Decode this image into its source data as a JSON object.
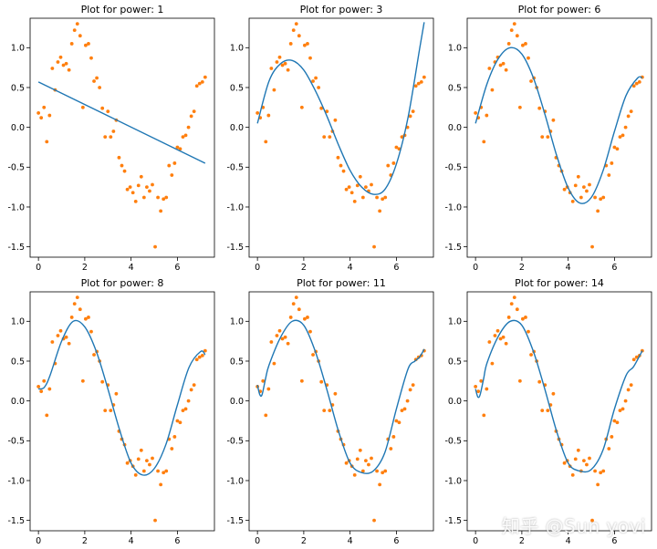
{
  "chart_data": {
    "type": "scatter",
    "layout": "2x3 grid of subplots",
    "xlim": [
      -0.36,
      7.6
    ],
    "ylim": [
      -1.63,
      1.37
    ],
    "xticks": [
      0,
      2,
      4,
      6
    ],
    "yticks": [
      -1.5,
      -1.0,
      -0.5,
      0.0,
      0.5,
      1.0
    ],
    "ytick_labels": [
      "-1.5",
      "-1.0",
      "-0.5",
      "0.0",
      "0.5",
      "1.0"
    ],
    "xtick_labels": [
      "0",
      "2",
      "4",
      "6"
    ],
    "points": {
      "x": [
        0.0,
        0.12,
        0.24,
        0.36,
        0.48,
        0.6,
        0.72,
        0.84,
        0.96,
        1.08,
        1.2,
        1.32,
        1.44,
        1.56,
        1.68,
        1.8,
        1.92,
        2.04,
        2.16,
        2.28,
        2.4,
        2.52,
        2.64,
        2.76,
        2.88,
        3.0,
        3.12,
        3.24,
        3.36,
        3.48,
        3.6,
        3.72,
        3.84,
        3.96,
        4.08,
        4.2,
        4.32,
        4.44,
        4.56,
        4.68,
        4.8,
        4.92,
        5.04,
        5.16,
        5.28,
        5.4,
        5.52,
        5.64,
        5.76,
        5.88,
        6.0,
        6.12,
        6.24,
        6.36,
        6.48,
        6.6,
        6.72,
        6.84,
        6.96,
        7.08,
        7.2
      ],
      "y": [
        0.18,
        0.12,
        0.25,
        -0.18,
        0.15,
        0.74,
        0.47,
        0.82,
        0.88,
        0.78,
        0.8,
        0.72,
        1.05,
        1.22,
        1.3,
        1.15,
        0.25,
        1.03,
        1.05,
        0.87,
        0.58,
        0.62,
        0.5,
        0.24,
        -0.12,
        0.2,
        -0.12,
        -0.05,
        0.09,
        -0.38,
        -0.48,
        -0.55,
        -0.78,
        -0.75,
        -0.82,
        -0.93,
        -0.73,
        -0.62,
        -0.88,
        -0.75,
        -0.8,
        -0.72,
        -1.5,
        -0.88,
        -1.05,
        -0.9,
        -0.88,
        -0.48,
        -0.6,
        -0.45,
        -0.25,
        -0.27,
        -0.12,
        -0.1,
        0.0,
        0.14,
        0.2,
        0.52,
        0.55,
        0.57,
        0.63
      ]
    },
    "panels": [
      {
        "title": "Plot for power: 1",
        "power": 1,
        "fit_x": [
          0.0,
          7.2
        ],
        "fit_y": [
          0.57,
          -0.45
        ]
      },
      {
        "title": "Plot for power: 3",
        "power": 3,
        "fit_x": [
          0.0,
          0.5,
          1.0,
          1.5,
          2.0,
          2.5,
          3.0,
          3.5,
          4.0,
          4.5,
          5.0,
          5.5,
          6.0,
          6.5,
          7.0,
          7.2
        ],
        "fit_y": [
          0.05,
          0.58,
          0.8,
          0.84,
          0.72,
          0.46,
          0.14,
          -0.22,
          -0.54,
          -0.75,
          -0.84,
          -0.78,
          -0.46,
          0.12,
          0.98,
          1.32
        ]
      },
      {
        "title": "Plot for power: 6",
        "power": 6,
        "fit_x": [
          0.0,
          0.5,
          1.0,
          1.5,
          2.0,
          2.5,
          3.0,
          3.5,
          4.0,
          4.5,
          5.0,
          5.5,
          6.0,
          6.5,
          7.0,
          7.2
        ],
        "fit_y": [
          0.05,
          0.55,
          0.87,
          1.0,
          0.92,
          0.62,
          0.16,
          -0.35,
          -0.76,
          -0.95,
          -0.88,
          -0.55,
          -0.05,
          0.4,
          0.62,
          0.62
        ]
      },
      {
        "title": "Plot for power: 8",
        "power": 8,
        "fit_x": [
          0.0,
          0.25,
          0.5,
          1.0,
          1.5,
          2.0,
          2.5,
          3.0,
          3.5,
          4.0,
          4.5,
          5.0,
          5.5,
          6.0,
          6.5,
          7.0,
          7.2
        ],
        "fit_y": [
          0.15,
          0.17,
          0.32,
          0.75,
          1.0,
          0.93,
          0.62,
          0.15,
          -0.36,
          -0.78,
          -0.93,
          -0.85,
          -0.55,
          -0.05,
          0.42,
          0.62,
          0.58
        ]
      },
      {
        "title": "Plot for power: 11",
        "power": 11,
        "fit_x": [
          0.0,
          0.1,
          0.2,
          0.35,
          0.5,
          1.0,
          1.5,
          2.0,
          2.5,
          3.0,
          3.5,
          4.0,
          4.5,
          5.0,
          5.5,
          6.0,
          6.5,
          6.8,
          7.0,
          7.2
        ],
        "fit_y": [
          0.2,
          0.08,
          0.08,
          0.28,
          0.45,
          0.8,
          1.0,
          0.95,
          0.62,
          0.14,
          -0.38,
          -0.78,
          -0.9,
          -0.88,
          -0.65,
          -0.1,
          0.4,
          0.5,
          0.55,
          0.65
        ]
      },
      {
        "title": "Plot for power: 14",
        "power": 14,
        "fit_x": [
          0.0,
          0.1,
          0.2,
          0.35,
          0.5,
          1.0,
          1.5,
          2.0,
          2.5,
          3.0,
          3.5,
          4.0,
          4.5,
          5.0,
          5.5,
          6.0,
          6.5,
          6.8,
          7.0,
          7.2
        ],
        "fit_y": [
          0.15,
          0.05,
          0.08,
          0.28,
          0.48,
          0.82,
          1.0,
          0.95,
          0.62,
          0.14,
          -0.38,
          -0.78,
          -0.88,
          -0.86,
          -0.62,
          -0.1,
          0.32,
          0.42,
          0.52,
          0.63
        ]
      }
    ],
    "colors": {
      "fit_line": "#1f77b4",
      "points": "#ff7f0e",
      "axis": "#000000"
    }
  },
  "watermark": "知乎 @Sun yovi"
}
